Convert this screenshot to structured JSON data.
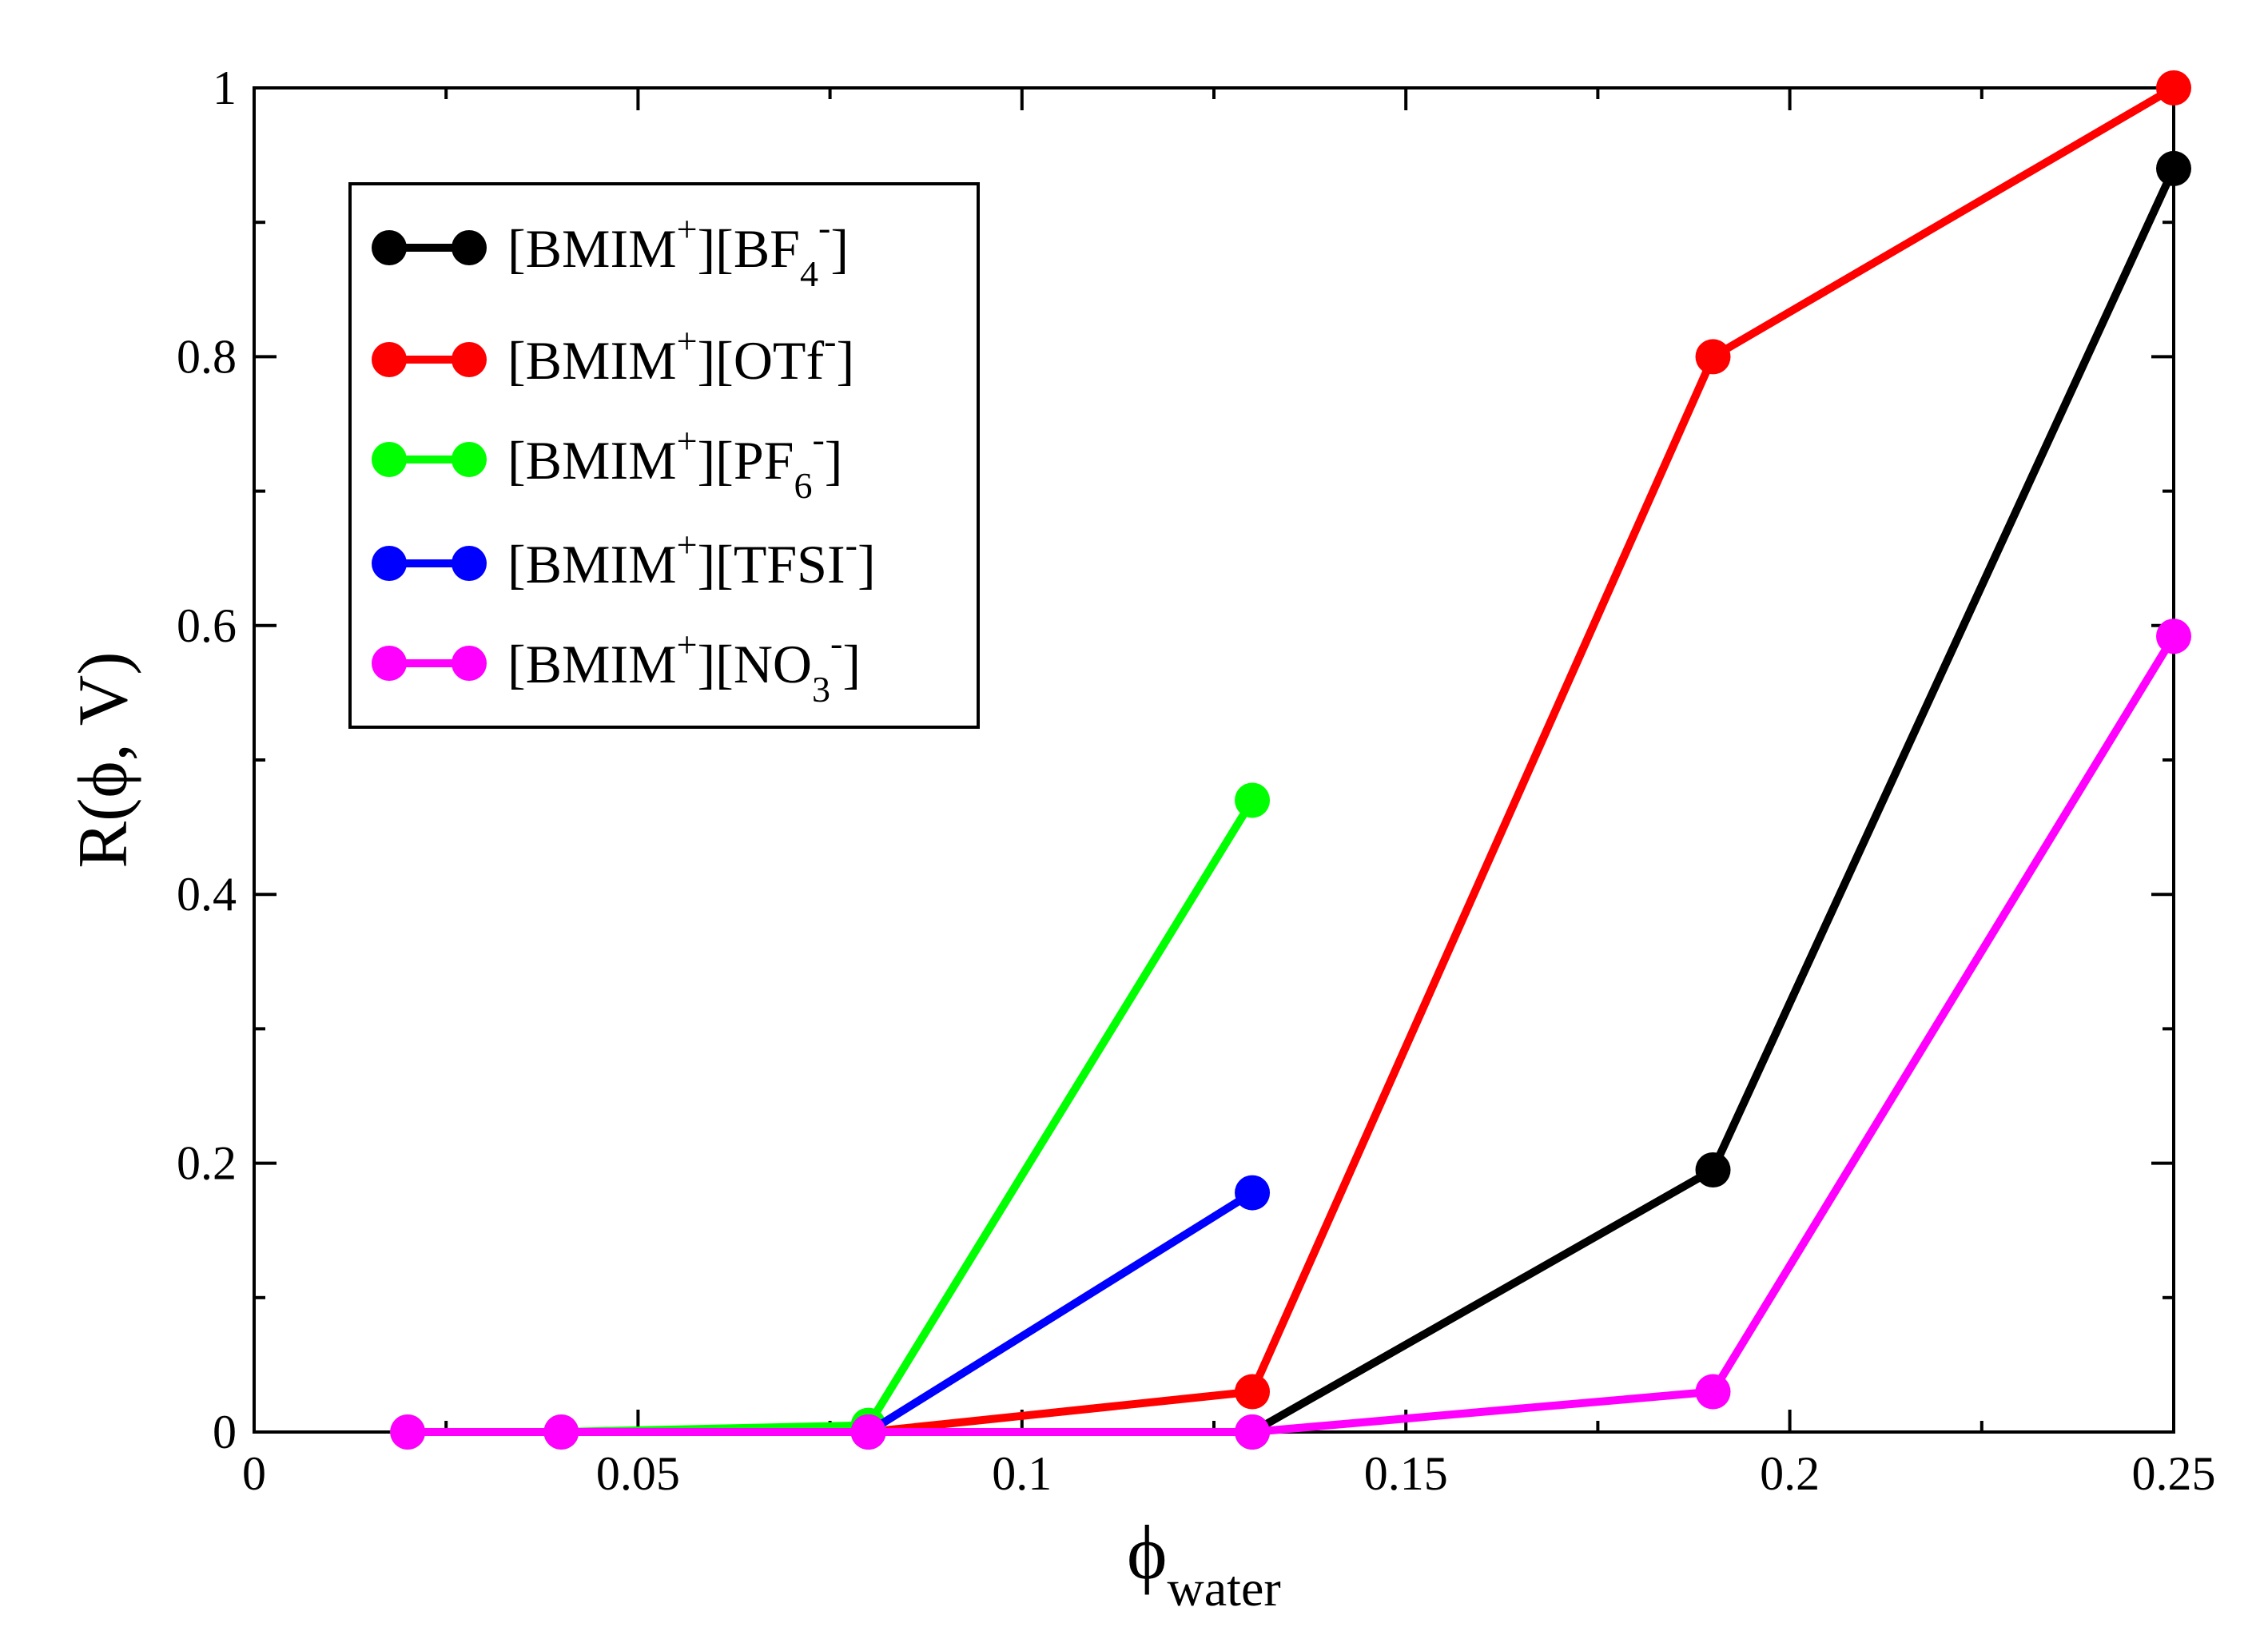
{
  "chart_data": {
    "type": "line",
    "xlabel": {
      "symbol": "ϕ",
      "subscript": "water"
    },
    "ylabel": "R(ϕ, V)",
    "xlim": [
      0,
      0.25
    ],
    "ylim": [
      0,
      1
    ],
    "x_major_ticks": [
      0,
      0.05,
      0.1,
      0.15,
      0.2,
      0.25
    ],
    "x_tick_labels": [
      "0",
      "0.05",
      "0.1",
      "0.15",
      "0.2",
      "0.25"
    ],
    "x_minor_ticks": [
      0.025,
      0.075,
      0.125,
      0.175,
      0.225
    ],
    "y_major_ticks": [
      0,
      0.2,
      0.4,
      0.6,
      0.8,
      1
    ],
    "y_tick_labels": [
      "0",
      "0.2",
      "0.4",
      "0.6",
      "0.8",
      "1"
    ],
    "y_minor_ticks": [
      0.1,
      0.3,
      0.5,
      0.7,
      0.9
    ],
    "grid": false,
    "legend_position": "top-left",
    "series": [
      {
        "name": "[BMIM+][BF4-]",
        "label_parts": {
          "base1": "[BMIM",
          "sup1": "+",
          "base2": "][BF",
          "sub2": "4",
          "sup2": "-",
          "end": "]"
        },
        "color": "#000000",
        "x": [
          0.13,
          0.19,
          0.25
        ],
        "y": [
          0.0,
          0.195,
          0.94
        ]
      },
      {
        "name": "[BMIM+][OTf-]",
        "label_parts": {
          "base1": "[BMIM",
          "sup1": "+",
          "base2": "][OTf",
          "sub2": "",
          "sup2": "-",
          "end": "]"
        },
        "color": "#ff0000",
        "x": [
          0.08,
          0.13,
          0.19,
          0.25
        ],
        "y": [
          0.0,
          0.03,
          0.8,
          1.0
        ]
      },
      {
        "name": "[BMIM+][PF6-]",
        "label_parts": {
          "base1": "[BMIM",
          "sup1": "+",
          "base2": "][PF",
          "sub2": "6",
          "sup2": "-",
          "end": "]"
        },
        "color": "#00ff00",
        "x": [
          0.02,
          0.04,
          0.08,
          0.13
        ],
        "y": [
          0.0,
          0.0,
          0.005,
          0.47
        ]
      },
      {
        "name": "[BMIM+][TFSI-]",
        "label_parts": {
          "base1": "[BMIM",
          "sup1": "+",
          "base2": "][TFSI",
          "sub2": "",
          "sup2": "-",
          "end": "]"
        },
        "color": "#0000ff",
        "x": [
          0.08,
          0.13
        ],
        "y": [
          0.0,
          0.178
        ]
      },
      {
        "name": "[BMIM+][NO3-]",
        "label_parts": {
          "base1": "[BMIM",
          "sup1": "+",
          "base2": "][NO",
          "sub2": "3",
          "sup2": "-",
          "end": "]"
        },
        "color": "#ff00ff",
        "x": [
          0.02,
          0.04,
          0.08,
          0.13,
          0.19,
          0.25
        ],
        "y": [
          0.0,
          0.0,
          0.0,
          0.0,
          0.03,
          0.592
        ]
      }
    ]
  }
}
